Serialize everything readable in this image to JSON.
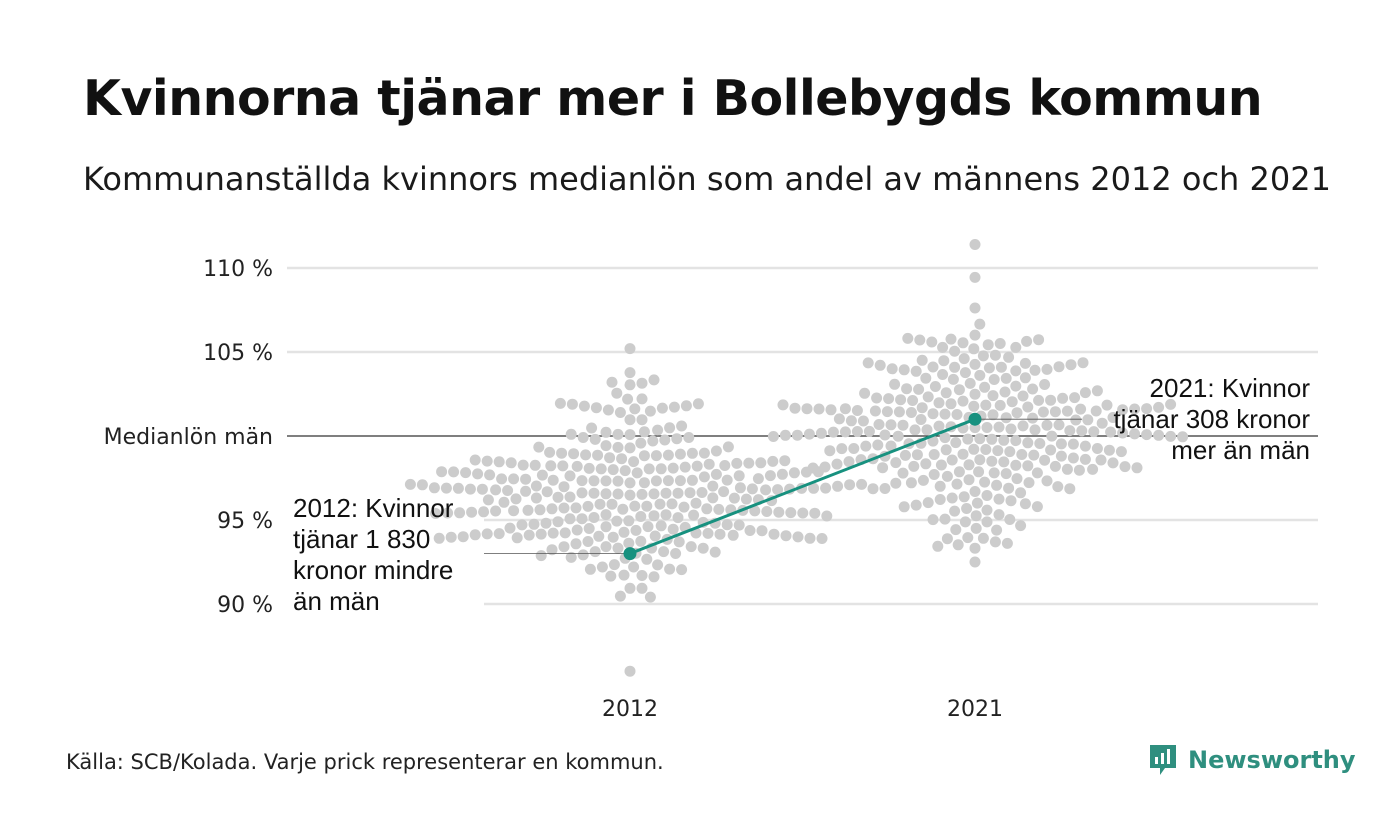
{
  "title": "Kvinnorna tjänar mer i Bollebygds kommun",
  "subtitle": "Kommunanställda kvinnors medianlön som andel av männens 2012 och 2021",
  "source": "Källa: SCB/Kolada. Varje prick representerar en kommun.",
  "brand": "Newsworthy",
  "colors": {
    "dots": "#cccccc",
    "highlight": "#17917f",
    "grid": "#e3e3e3",
    "reference_line": "#333333"
  },
  "chart_data": {
    "type": "scatter",
    "subtype": "beeswarm",
    "categories": [
      "2012",
      "2021"
    ],
    "y_unit": "%",
    "ylim": [
      86,
      111.5
    ],
    "y_ticks": [
      {
        "value": 90,
        "label": "90 %"
      },
      {
        "value": 95,
        "label": "95 %"
      },
      {
        "value": 100,
        "label": "Medianlön män"
      },
      {
        "value": 105,
        "label": "105 %"
      },
      {
        "value": 110,
        "label": "110 %"
      }
    ],
    "reference_line": {
      "value": 100,
      "label": "Medianlön män"
    },
    "grid": true,
    "swarm": [
      {
        "category": "2012",
        "count": 290,
        "min": 86.0,
        "max": 105.2,
        "center": 96.5
      },
      {
        "category": "2021",
        "count": 290,
        "min": 92.5,
        "max": 111.4,
        "center": 100.5
      }
    ],
    "highlight": {
      "name": "Bollebygd",
      "points": [
        {
          "x": "2012",
          "y": 93.0
        },
        {
          "x": "2021",
          "y": 101.0
        }
      ]
    },
    "annotations": [
      {
        "x": "2012",
        "lines": [
          "2012: Kvinnor",
          "tjänar 1 830",
          "kronor mindre",
          "än män"
        ]
      },
      {
        "x": "2021",
        "lines": [
          "2021: Kvinnor",
          "tjänar 308 kronor",
          "mer än män"
        ]
      }
    ]
  }
}
